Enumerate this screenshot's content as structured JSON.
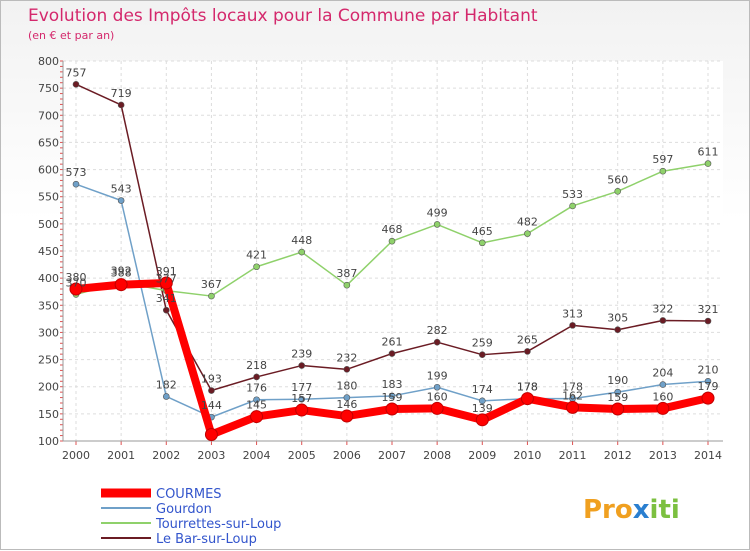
{
  "chart_data": {
    "type": "line",
    "title": "Evolution des Impôts locaux pour la Commune par Habitant",
    "subtitle": "(en € et par an)",
    "categories": [
      "2000",
      "2001",
      "2002",
      "2003",
      "2004",
      "2005",
      "2006",
      "2007",
      "2008",
      "2009",
      "2010",
      "2011",
      "2012",
      "2013",
      "2014"
    ],
    "ylim": [
      100,
      800
    ],
    "yticks": [
      100,
      150,
      200,
      250,
      300,
      350,
      400,
      450,
      500,
      550,
      600,
      650,
      700,
      750,
      800
    ],
    "series": [
      {
        "name": "COURMES",
        "color": "#ff0000",
        "values": [
          380,
          388,
          391,
          112,
          145,
          157,
          146,
          159,
          160,
          139,
          178,
          162,
          159,
          160,
          179
        ],
        "labels": [
          "380",
          "388",
          "391",
          "",
          "145",
          "157",
          "146",
          "159",
          "160",
          "139",
          "178",
          "162",
          "159",
          "160",
          "179"
        ]
      },
      {
        "name": "Gourdon",
        "color": "#6fa0c8",
        "values": [
          573,
          543,
          182,
          144,
          176,
          177,
          180,
          183,
          199,
          174,
          178,
          178,
          190,
          204,
          210
        ],
        "labels": [
          "573",
          "543",
          "182",
          "144",
          "176",
          "177",
          "180",
          "183",
          "199",
          "174",
          "178",
          "178",
          "190",
          "204",
          "210"
        ]
      },
      {
        "name": "Tourrettes-sur-Loup",
        "color": "#8fd16b",
        "values": [
          370,
          392,
          377,
          367,
          421,
          448,
          387,
          468,
          499,
          465,
          482,
          533,
          560,
          597,
          611
        ],
        "labels": [
          "370",
          "392",
          "377",
          "367",
          "421",
          "448",
          "387",
          "468",
          "499",
          "465",
          "482",
          "533",
          "560",
          "597",
          "611"
        ]
      },
      {
        "name": "Le Bar-sur-Loup",
        "color": "#6b1c24",
        "values": [
          757,
          719,
          341,
          193,
          218,
          239,
          232,
          261,
          282,
          259,
          265,
          313,
          305,
          322,
          321
        ],
        "labels": [
          "757",
          "719",
          "341",
          "193",
          "218",
          "239",
          "232",
          "261",
          "282",
          "259",
          "265",
          "313",
          "305",
          "322",
          "321"
        ]
      }
    ]
  },
  "logo": {
    "p1": "Pro",
    "p2": "x",
    "p3": "iti"
  }
}
